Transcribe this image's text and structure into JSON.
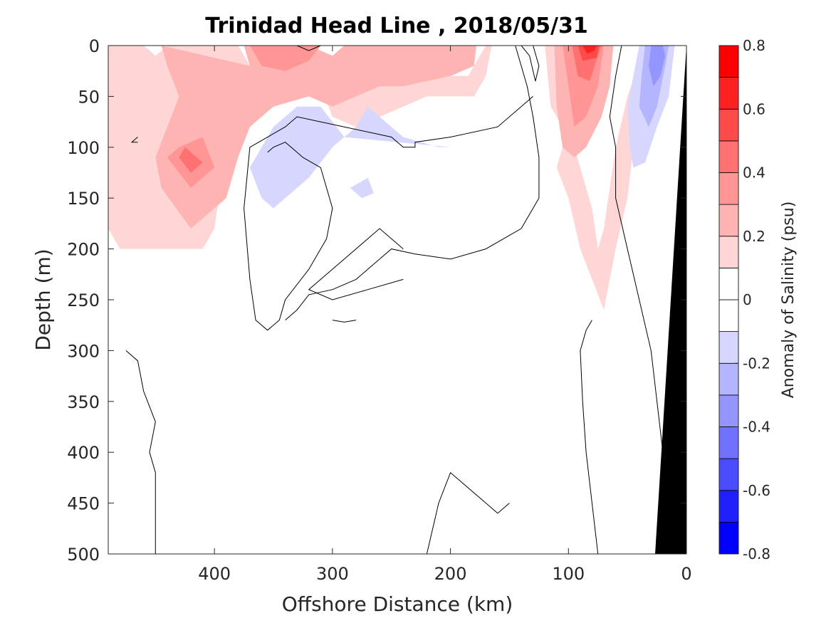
{
  "chart_data": {
    "type": "heatmap",
    "title": "Trinidad Head Line , 2018/05/31",
    "xlabel": "Offshore Distance (km)",
    "ylabel": "Depth (m)",
    "x_reversed": true,
    "xlim": [
      490,
      0
    ],
    "ylim": [
      0,
      500
    ],
    "y_reversed": true,
    "x_ticks": [
      400,
      300,
      200,
      100,
      0
    ],
    "y_ticks": [
      0,
      50,
      100,
      150,
      200,
      250,
      300,
      350,
      400,
      450,
      500
    ],
    "colorbar": {
      "label": "Anomaly of Salinity (psu)",
      "range": [
        -0.8,
        0.8
      ],
      "levels": [
        -0.8,
        -0.7,
        -0.6,
        -0.5,
        -0.4,
        -0.3,
        -0.2,
        -0.1,
        0,
        0.1,
        0.2,
        0.3,
        0.4,
        0.5,
        0.6,
        0.7,
        0.8
      ],
      "tick_values": [
        -0.8,
        -0.6,
        -0.4,
        -0.2,
        0,
        0.2,
        0.4,
        0.6,
        0.8
      ],
      "tick_labels": [
        "-0.8",
        "-0.6",
        "-0.4",
        "-0.2",
        "0",
        "0.2",
        "0.4",
        "0.6",
        "0.8"
      ],
      "band_colors": [
        "#0000ff",
        "#2020ff",
        "#4a4aff",
        "#7171ff",
        "#9595ff",
        "#b4b4ff",
        "#d6d6ff",
        "#ffffff",
        "#ffffff",
        "#ffd6d6",
        "#ffb4b4",
        "#ff9595",
        "#ff7171",
        "#ff4a4a",
        "#ff2020",
        "#ff0000"
      ]
    },
    "regions": [
      {
        "level": 0.1,
        "points": [
          [
            490,
            0
          ],
          [
            460,
            0
          ],
          [
            450,
            10
          ],
          [
            440,
            0
          ],
          [
            380,
            0
          ],
          [
            370,
            20
          ],
          [
            350,
            40
          ],
          [
            330,
            30
          ],
          [
            320,
            20
          ],
          [
            310,
            40
          ],
          [
            300,
            70
          ],
          [
            280,
            80
          ],
          [
            260,
            70
          ],
          [
            240,
            60
          ],
          [
            220,
            50
          ],
          [
            180,
            50
          ],
          [
            170,
            30
          ],
          [
            165,
            0
          ],
          [
            120,
            0
          ],
          [
            115,
            60
          ],
          [
            95,
            100
          ],
          [
            80,
            160
          ],
          [
            75,
            200
          ],
          [
            70,
            180
          ],
          [
            60,
            100
          ],
          [
            50,
            50
          ],
          [
            35,
            0
          ],
          [
            30,
            30
          ],
          [
            40,
            60
          ],
          [
            45,
            100
          ],
          [
            50,
            150
          ],
          [
            60,
            200
          ],
          [
            70,
            260
          ],
          [
            90,
            200
          ],
          [
            100,
            150
          ],
          [
            110,
            120
          ],
          [
            100,
            80
          ],
          [
            90,
            50
          ],
          [
            95,
            20
          ],
          [
            100,
            0
          ],
          [
            170,
            0
          ],
          [
            185,
            30
          ],
          [
            230,
            30
          ],
          [
            260,
            40
          ],
          [
            300,
            20
          ],
          [
            340,
            30
          ],
          [
            380,
            40
          ],
          [
            390,
            100
          ],
          [
            400,
            180
          ],
          [
            410,
            200
          ],
          [
            480,
            200
          ],
          [
            490,
            180
          ]
        ]
      },
      {
        "level": 0.2,
        "points": [
          [
            445,
            0
          ],
          [
            440,
            20
          ],
          [
            430,
            50
          ],
          [
            440,
            80
          ],
          [
            450,
            110
          ],
          [
            445,
            140
          ],
          [
            420,
            180
          ],
          [
            390,
            150
          ],
          [
            380,
            110
          ],
          [
            370,
            80
          ],
          [
            350,
            60
          ],
          [
            320,
            50
          ],
          [
            300,
            60
          ],
          [
            280,
            50
          ],
          [
            260,
            40
          ],
          [
            240,
            40
          ],
          [
            200,
            30
          ],
          [
            180,
            20
          ],
          [
            178,
            0
          ],
          [
            290,
            0
          ],
          [
            300,
            10
          ],
          [
            320,
            0
          ],
          [
            375,
            0
          ],
          [
            370,
            20
          ]
        ]
      },
      {
        "level": 0.2,
        "points": [
          [
            112,
            0
          ],
          [
            110,
            60
          ],
          [
            105,
            100
          ],
          [
            95,
            110
          ],
          [
            85,
            100
          ],
          [
            72,
            70
          ],
          [
            65,
            40
          ],
          [
            62,
            0
          ]
        ]
      },
      {
        "level": 0.3,
        "points": [
          [
            370,
            0
          ],
          [
            360,
            20
          ],
          [
            340,
            25
          ],
          [
            320,
            15
          ],
          [
            310,
            0
          ]
        ]
      },
      {
        "level": 0.3,
        "points": [
          [
            430,
            100
          ],
          [
            440,
            110
          ],
          [
            420,
            140
          ],
          [
            400,
            120
          ],
          [
            410,
            90
          ]
        ]
      },
      {
        "level": 0.3,
        "points": [
          [
            105,
            0
          ],
          [
            100,
            40
          ],
          [
            95,
            80
          ],
          [
            85,
            70
          ],
          [
            75,
            40
          ],
          [
            70,
            0
          ]
        ]
      },
      {
        "level": 0.4,
        "points": [
          [
            425,
            100
          ],
          [
            410,
            115
          ],
          [
            420,
            125
          ],
          [
            430,
            110
          ]
        ]
      },
      {
        "level": 0.4,
        "points": [
          [
            97,
            0
          ],
          [
            92,
            30
          ],
          [
            82,
            35
          ],
          [
            75,
            10
          ],
          [
            72,
            0
          ]
        ]
      },
      {
        "level": 0.5,
        "points": [
          [
            92,
            0
          ],
          [
            88,
            15
          ],
          [
            76,
            12
          ],
          [
            74,
            0
          ]
        ]
      },
      {
        "level": 0.6,
        "points": [
          [
            88,
            0
          ],
          [
            84,
            8
          ],
          [
            78,
            5
          ],
          [
            76,
            0
          ]
        ]
      },
      {
        "level": -0.1,
        "points": [
          [
            40,
            0
          ],
          [
            45,
            30
          ],
          [
            50,
            60
          ],
          [
            48,
            100
          ],
          [
            45,
            120
          ],
          [
            35,
            115
          ],
          [
            25,
            80
          ],
          [
            15,
            50
          ],
          [
            10,
            0
          ]
        ]
      },
      {
        "level": -0.1,
        "points": [
          [
            200,
            100
          ],
          [
            210,
            100
          ],
          [
            240,
            90
          ],
          [
            260,
            70
          ],
          [
            270,
            60
          ],
          [
            280,
            80
          ],
          [
            300,
            100
          ],
          [
            320,
            130
          ],
          [
            340,
            150
          ],
          [
            350,
            160
          ],
          [
            360,
            150
          ],
          [
            370,
            120
          ],
          [
            360,
            100
          ],
          [
            350,
            80
          ],
          [
            330,
            60
          ],
          [
            310,
            60
          ],
          [
            290,
            90
          ]
        ]
      },
      {
        "level": -0.1,
        "points": [
          [
            345,
            100
          ],
          [
            355,
            110
          ],
          [
            350,
            115
          ],
          [
            340,
            112
          ],
          [
            338,
            102
          ]
        ]
      },
      {
        "level": -0.1,
        "points": [
          [
            270,
            130
          ],
          [
            285,
            140
          ],
          [
            275,
            150
          ],
          [
            265,
            145
          ]
        ]
      },
      {
        "level": -0.2,
        "points": [
          [
            35,
            0
          ],
          [
            38,
            30
          ],
          [
            40,
            60
          ],
          [
            32,
            80
          ],
          [
            25,
            60
          ],
          [
            18,
            20
          ],
          [
            15,
            0
          ]
        ]
      },
      {
        "level": -0.3,
        "points": [
          [
            30,
            0
          ],
          [
            32,
            20
          ],
          [
            28,
            40
          ],
          [
            22,
            30
          ],
          [
            18,
            10
          ],
          [
            20,
            0
          ]
        ]
      }
    ],
    "zero_contours": [
      [
        [
          130,
          0
        ],
        [
          125,
          20
        ],
        [
          128,
          35
        ],
        [
          133,
          10
        ],
        [
          140,
          0
        ]
      ],
      [
        [
          130,
          50
        ],
        [
          160,
          80
        ],
        [
          200,
          90
        ],
        [
          230,
          95
        ],
        [
          230,
          100
        ],
        [
          240,
          100
        ],
        [
          250,
          90
        ],
        [
          290,
          80
        ],
        [
          330,
          70
        ],
        [
          340,
          80
        ],
        [
          370,
          100
        ],
        [
          375,
          160
        ],
        [
          370,
          230
        ],
        [
          365,
          270
        ],
        [
          355,
          280
        ],
        [
          345,
          270
        ],
        [
          340,
          250
        ],
        [
          320,
          220
        ],
        [
          310,
          200
        ],
        [
          305,
          190
        ],
        [
          300,
          160
        ],
        [
          310,
          120
        ],
        [
          325,
          110
        ],
        [
          335,
          100
        ],
        [
          340,
          95
        ],
        [
          350,
          100
        ],
        [
          355,
          105
        ]
      ],
      [
        [
          145,
          0
        ],
        [
          135,
          40
        ],
        [
          130,
          70
        ],
        [
          125,
          110
        ],
        [
          125,
          150
        ],
        [
          140,
          180
        ],
        [
          170,
          200
        ],
        [
          200,
          210
        ],
        [
          230,
          205
        ],
        [
          250,
          200
        ],
        [
          260,
          210
        ],
        [
          280,
          230
        ],
        [
          300,
          240
        ],
        [
          320,
          245
        ],
        [
          330,
          260
        ],
        [
          340,
          270
        ]
      ],
      [
        [
          330,
          0
        ],
        [
          320,
          5
        ],
        [
          310,
          0
        ]
      ],
      [
        [
          475,
          300
        ],
        [
          465,
          310
        ],
        [
          460,
          340
        ],
        [
          450,
          370
        ],
        [
          455,
          400
        ],
        [
          450,
          420
        ],
        [
          450,
          500
        ]
      ],
      [
        [
          465,
          90
        ],
        [
          468,
          93
        ],
        [
          470,
          95
        ],
        [
          465,
          95
        ]
      ],
      [
        [
          55,
          0
        ],
        [
          60,
          30
        ],
        [
          65,
          70
        ],
        [
          60,
          100
        ],
        [
          60,
          150
        ],
        [
          50,
          200
        ],
        [
          40,
          250
        ],
        [
          30,
          300
        ],
        [
          25,
          350
        ],
        [
          20,
          400
        ],
        [
          22,
          450
        ],
        [
          25,
          500
        ]
      ],
      [
        [
          240,
          200
        ],
        [
          260,
          180
        ],
        [
          270,
          190
        ],
        [
          290,
          210
        ],
        [
          310,
          230
        ],
        [
          320,
          240
        ],
        [
          300,
          250
        ],
        [
          270,
          240
        ],
        [
          240,
          230
        ]
      ],
      [
        [
          150,
          450
        ],
        [
          160,
          460
        ],
        [
          180,
          440
        ],
        [
          190,
          430
        ],
        [
          200,
          420
        ],
        [
          210,
          450
        ],
        [
          220,
          500
        ]
      ],
      [
        [
          80,
          270
        ],
        [
          85,
          280
        ],
        [
          90,
          300
        ],
        [
          88,
          350
        ],
        [
          85,
          400
        ],
        [
          80,
          450
        ],
        [
          75,
          500
        ]
      ],
      [
        [
          280,
          270
        ],
        [
          290,
          272
        ],
        [
          300,
          270
        ]
      ]
    ]
  }
}
